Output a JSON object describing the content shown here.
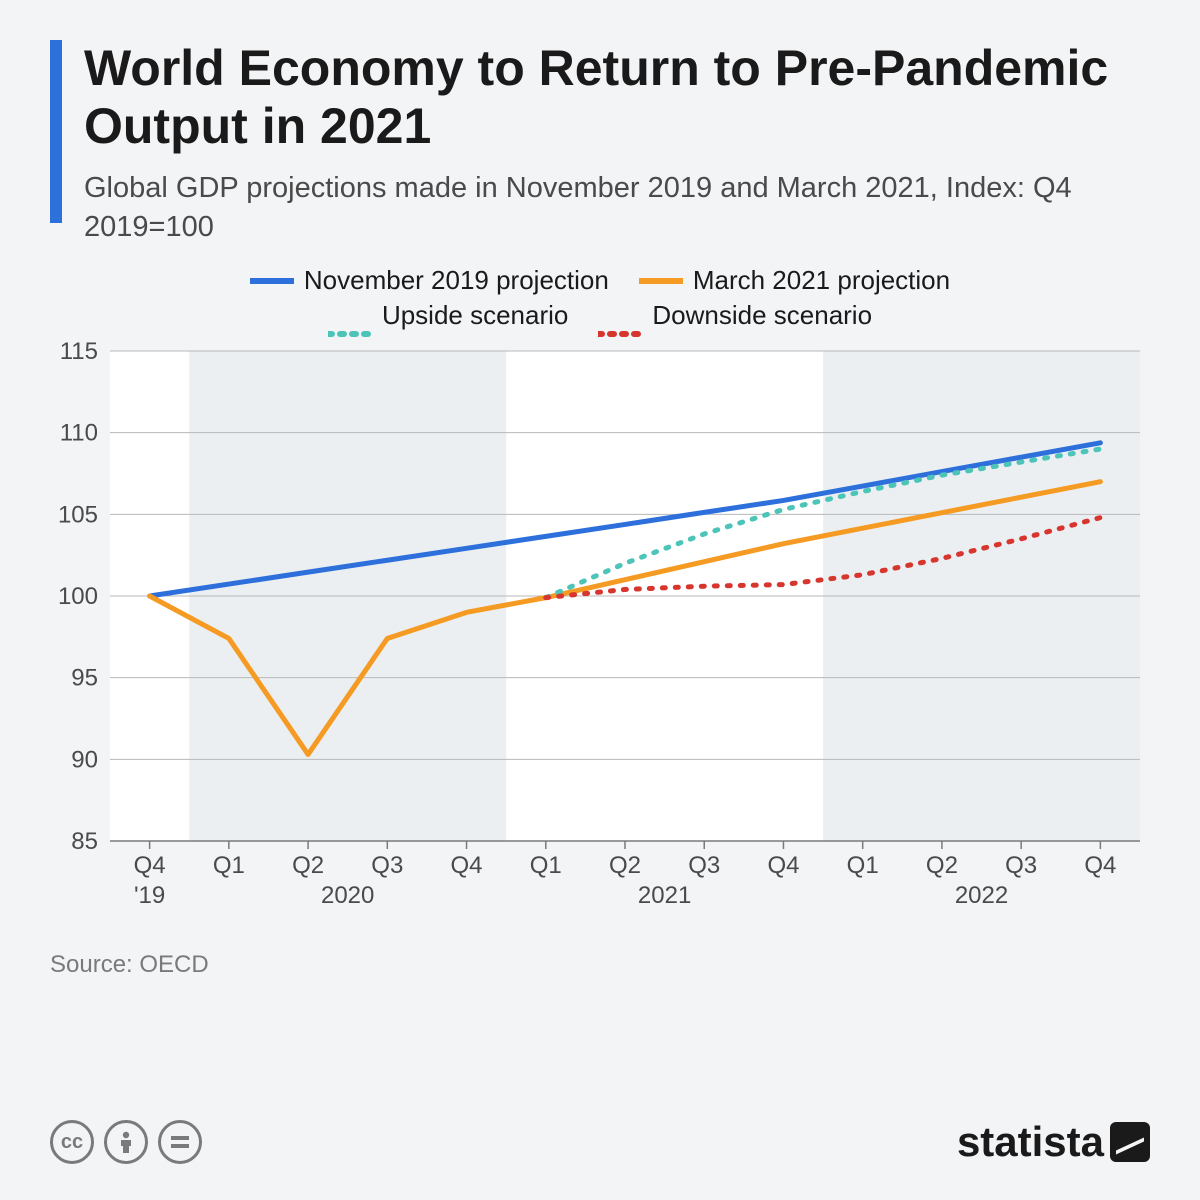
{
  "header": {
    "title": "World Economy to Return to Pre-Pandemic Output in 2021",
    "subtitle": "Global GDP projections made in November 2019 and March 2021, Index: Q4 2019=100",
    "accent_color": "#2d6fdb"
  },
  "legend": {
    "items": [
      {
        "label": "November 2019 projection",
        "color": "#2d6fdb",
        "style": "solid"
      },
      {
        "label": "March 2021 projection",
        "color": "#f59a22",
        "style": "solid"
      },
      {
        "label": "Upside scenario",
        "color": "#4cc4b8",
        "style": "dotted"
      },
      {
        "label": "Downside scenario",
        "color": "#d7362e",
        "style": "dotted"
      }
    ]
  },
  "chart": {
    "type": "line",
    "background_color": "#f3f4f6",
    "plot_background": "#ffffff",
    "year_band_color": "#dde1e6",
    "grid_color": "#b8b8b8",
    "axis_color": "#7a7a7a",
    "tick_font_size": 24,
    "tick_color": "#4a4a4a",
    "ylim": [
      85,
      115
    ],
    "ytick_step": 5,
    "yticks": [
      85,
      90,
      95,
      100,
      105,
      110,
      115
    ],
    "x_categories": [
      "Q4",
      "Q1",
      "Q2",
      "Q3",
      "Q4",
      "Q1",
      "Q2",
      "Q3",
      "Q4",
      "Q1",
      "Q2",
      "Q3",
      "Q4"
    ],
    "x_year_labels": [
      {
        "label": "'19",
        "span": [
          0,
          0
        ]
      },
      {
        "label": "2020",
        "span": [
          1,
          4
        ]
      },
      {
        "label": "2021",
        "span": [
          5,
          8
        ]
      },
      {
        "label": "2022",
        "span": [
          9,
          12
        ]
      }
    ],
    "line_width": 5,
    "dot_dash": "3 10",
    "series": [
      {
        "name": "nov2019",
        "color": "#2d6fdb",
        "style": "solid",
        "y": [
          100,
          100.73,
          101.46,
          102.19,
          102.92,
          103.65,
          104.38,
          105.12,
          105.85,
          106.73,
          107.62,
          108.5,
          109.38
        ]
      },
      {
        "name": "mar2021",
        "color": "#f59a22",
        "style": "solid",
        "y": [
          100,
          97.4,
          90.3,
          97.4,
          99.0,
          99.9,
          101.0,
          102.1,
          103.2,
          104.15,
          105.1,
          106.05,
          107.0
        ]
      },
      {
        "name": "upside",
        "color": "#4cc4b8",
        "style": "dotted",
        "y": [
          null,
          null,
          null,
          null,
          null,
          99.9,
          102.0,
          103.8,
          105.3,
          106.4,
          107.4,
          108.2,
          109.0
        ]
      },
      {
        "name": "downside",
        "color": "#d7362e",
        "style": "dotted",
        "y": [
          null,
          null,
          null,
          null,
          null,
          99.9,
          100.4,
          100.6,
          100.7,
          101.3,
          102.3,
          103.5,
          104.8
        ]
      }
    ]
  },
  "source": {
    "label": "Source: OECD"
  },
  "footer": {
    "cc_icons": [
      "cc",
      "by",
      "nd"
    ],
    "brand": "statista"
  }
}
